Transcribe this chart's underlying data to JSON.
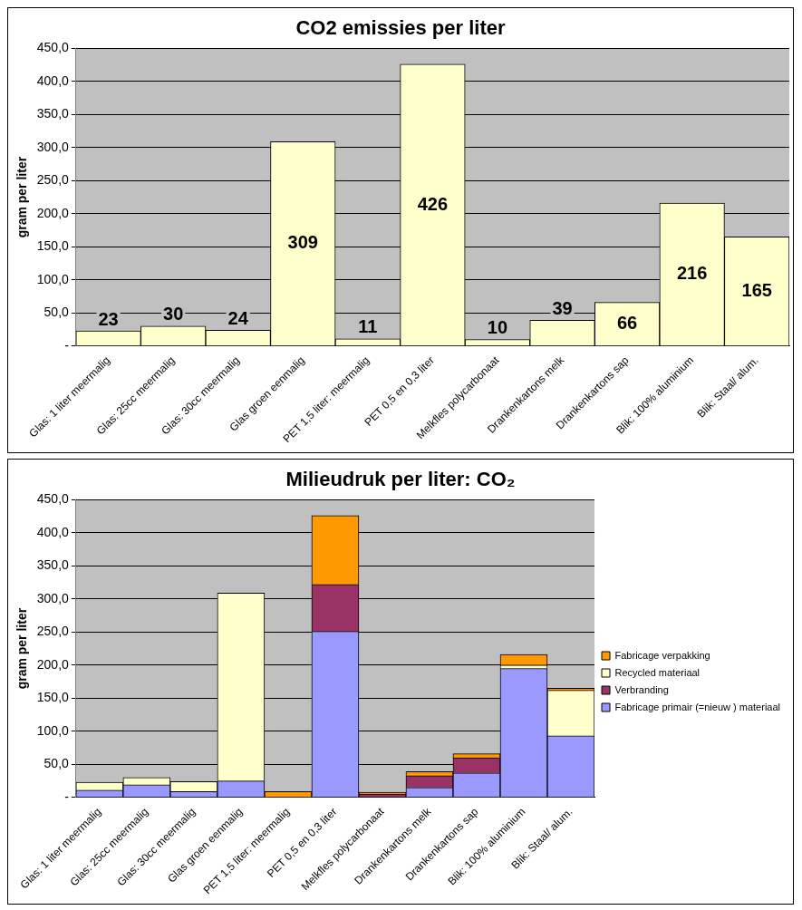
{
  "chart_data": [
    {
      "type": "bar",
      "title": "CO2 emissies per liter",
      "ylabel": "gram per liter",
      "categories": [
        "Glas: 1 liter meermalig",
        "Glas: 25cc meermalig",
        "Glas: 30cc meermalig",
        "Glas groen eenmalig",
        "PET 1,5 liter: meermalig",
        "PET 0,5 en 0,3 liter",
        "Melkfles polycarbonaat",
        "Drankenkartons melk",
        "Drankenkartons sap",
        "Blik: 100% aluminium",
        "Blik: Staal/ alum."
      ],
      "values": [
        23,
        30,
        24,
        309,
        11,
        426,
        10,
        39,
        66,
        216,
        165
      ],
      "color": "#ffffcc",
      "data_labels": true,
      "ylim": [
        0,
        450
      ],
      "yticks": [
        {
          "value": 0,
          "label": "-"
        },
        {
          "value": 50,
          "label": "50,0"
        },
        {
          "value": 100,
          "label": "100,0"
        },
        {
          "value": 150,
          "label": "150,0"
        },
        {
          "value": 200,
          "label": "200,0"
        },
        {
          "value": 250,
          "label": "250,0"
        },
        {
          "value": 300,
          "label": "300,0"
        },
        {
          "value": 350,
          "label": "350,0"
        },
        {
          "value": 400,
          "label": "400,0"
        },
        {
          "value": 450,
          "label": "450,0"
        }
      ],
      "grid": "y",
      "legend": false
    },
    {
      "type": "bar",
      "title": "Milieudruk per liter: CO₂",
      "ylabel": "gram per liter",
      "stacked": true,
      "categories": [
        "Glas: 1 liter meermalig",
        "Glas: 25cc meermalig",
        "Glas: 30cc meermalig",
        "Glas groen eenmalig",
        "PET 1,5 liter: meermalig",
        "PET 0,5 en 0,3 liter",
        "Melkfles polycarbonaat",
        "Drankenkartons melk",
        "Drankenkartons sap",
        "Blik: 100% aluminium",
        "Blik: Staal/ alum."
      ],
      "series": [
        {
          "name": "Fabricage primair (=nieuw ) materiaal",
          "color": "#9999ff",
          "values": [
            11,
            19,
            9,
            25,
            null,
            251,
            null,
            15,
            37,
            195,
            93
          ]
        },
        {
          "name": "Verbranding",
          "color": "#993366",
          "values": [
            0,
            0,
            0,
            0,
            0,
            71,
            5,
            18,
            23,
            0,
            0
          ]
        },
        {
          "name": "Recycled materiaal",
          "color": "#ffffcc",
          "values": [
            12,
            11,
            15,
            284,
            0,
            0,
            0,
            0,
            0,
            5,
            69
          ]
        },
        {
          "name": "Fabricage verpakking",
          "color": "#ff9900",
          "values": [
            0,
            0,
            0,
            0,
            9,
            104,
            3,
            6,
            6,
            16,
            3
          ]
        }
      ],
      "ylim": [
        0,
        450
      ],
      "yticks": [
        {
          "value": 0,
          "label": "-"
        },
        {
          "value": 50,
          "label": "50,0"
        },
        {
          "value": 100,
          "label": "100,0"
        },
        {
          "value": 150,
          "label": "150,0"
        },
        {
          "value": 200,
          "label": "200,0"
        },
        {
          "value": 250,
          "label": "250,0"
        },
        {
          "value": 300,
          "label": "300,0"
        },
        {
          "value": 350,
          "label": "350,0"
        },
        {
          "value": 400,
          "label": "400,0"
        },
        {
          "value": 450,
          "label": "450,0"
        }
      ],
      "grid": "y",
      "legend": "right"
    }
  ]
}
